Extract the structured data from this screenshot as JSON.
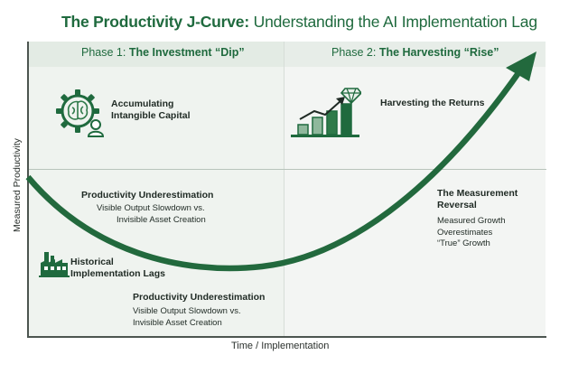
{
  "title": {
    "bold": "The Productivity J-Curve:",
    "rest": " Understanding the AI Implementation Lag"
  },
  "phases": [
    {
      "prefix": "Phase 1: ",
      "name": "The Investment “Dip”"
    },
    {
      "prefix": "Phase 2: ",
      "name": "The Harvesting “Rise”"
    }
  ],
  "axes": {
    "y_label": "Measured Productivity",
    "x_label": "Time / Implementation"
  },
  "annotations": {
    "intangible": {
      "line1": "Accumulating",
      "line2": "Intangible Capital"
    },
    "harvest": {
      "label": "Harvesting the Returns"
    },
    "underest1": {
      "title": "Productivity Underestimation",
      "line1": "Visible Output Slowdown vs.",
      "line2": "Invisible Asset Creation"
    },
    "lags": {
      "line1": "Historical",
      "line2": "Implementation Lags"
    },
    "underest2": {
      "title": "Productivity Underestimation",
      "line1": "Visible Output Slowdown vs.",
      "line2": "Invisible Asset Creation"
    },
    "reversal": {
      "title1": "The Measurement",
      "title2": "Reversal",
      "line1": "Measured Growth",
      "line2": "Overestimates",
      "line3": "“True” Growth"
    }
  },
  "colors": {
    "accent": "#1f6a3e",
    "curve": "#22693d"
  },
  "icons": [
    "brain-gear-icon",
    "growth-bar-chart-icon",
    "diamond-icon",
    "factory-icon"
  ]
}
